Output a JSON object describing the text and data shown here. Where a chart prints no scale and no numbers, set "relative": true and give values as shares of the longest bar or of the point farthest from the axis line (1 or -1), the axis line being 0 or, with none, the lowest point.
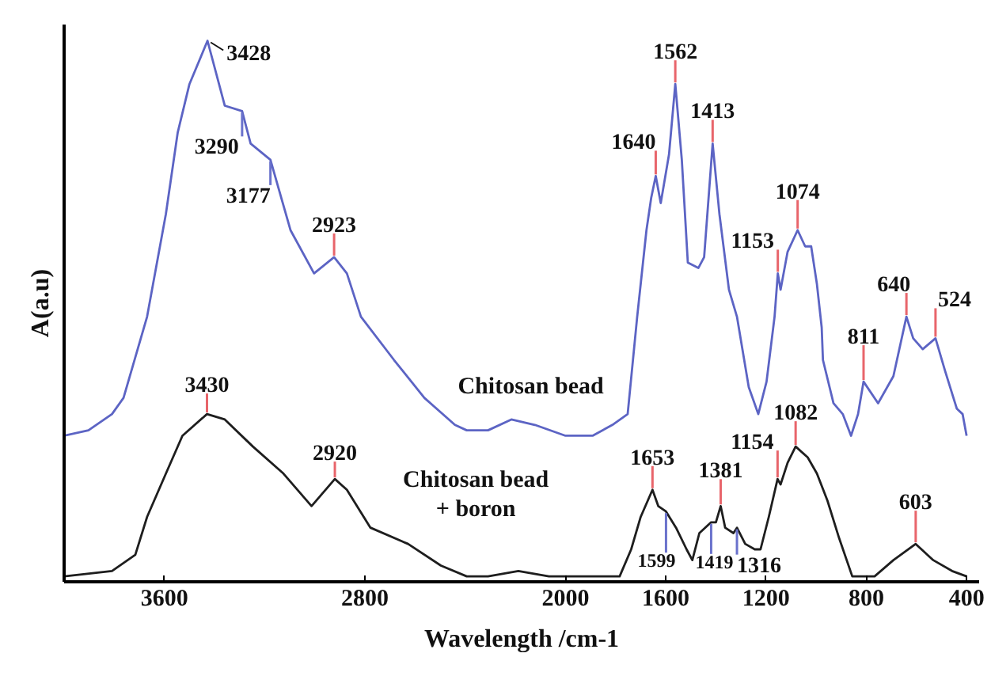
{
  "chart_data": {
    "type": "line",
    "xlabel": "Wavelength /cm-1",
    "ylabel": "A(a.u)",
    "relative": true,
    "xlim": [
      4000,
      350
    ],
    "xticks": [
      3600,
      2800,
      2000,
      1600,
      1200,
      800,
      400
    ],
    "series": [
      {
        "name": "Chitosan bead",
        "color": "#5c64c4",
        "x": [
          4000,
          3903,
          3809,
          3763,
          3669,
          3594,
          3547,
          3500,
          3428,
          3359,
          3290,
          3256,
          3177,
          3097,
          3003,
          2923,
          2872,
          2816,
          2684,
          2563,
          2441,
          2394,
          2309,
          2216,
          2122,
          2000,
          1892,
          1813,
          1752,
          1714,
          1677,
          1658,
          1640,
          1620,
          1587,
          1562,
          1536,
          1512,
          1470,
          1447,
          1413,
          1386,
          1348,
          1316,
          1269,
          1231,
          1198,
          1166,
          1153,
          1142,
          1114,
          1074,
          1044,
          1020,
          997,
          978,
          973,
          931,
          894,
          861,
          833,
          811,
          753,
          692,
          640,
          613,
          575,
          524,
          486,
          439,
          416,
          400
        ],
        "values": [
          0.27,
          0.28,
          0.31,
          0.34,
          0.49,
          0.68,
          0.83,
          0.92,
          1.0,
          0.88,
          0.87,
          0.81,
          0.78,
          0.65,
          0.57,
          0.6,
          0.57,
          0.49,
          0.41,
          0.34,
          0.29,
          0.28,
          0.28,
          0.3,
          0.29,
          0.27,
          0.27,
          0.29,
          0.31,
          0.49,
          0.65,
          0.71,
          0.75,
          0.7,
          0.79,
          0.92,
          0.78,
          0.59,
          0.58,
          0.6,
          0.81,
          0.68,
          0.54,
          0.49,
          0.36,
          0.31,
          0.37,
          0.49,
          0.57,
          0.54,
          0.61,
          0.65,
          0.62,
          0.62,
          0.55,
          0.47,
          0.41,
          0.33,
          0.31,
          0.27,
          0.31,
          0.37,
          0.33,
          0.38,
          0.49,
          0.45,
          0.43,
          0.45,
          0.39,
          0.32,
          0.31,
          0.27
        ]
      },
      {
        "name": "Chitosan bead + boron",
        "color": "#1e1e1e",
        "x": [
          4000,
          3809,
          3716,
          3669,
          3594,
          3528,
          3430,
          3359,
          3247,
          3125,
          3013,
          2920,
          2872,
          2778,
          2628,
          2497,
          2394,
          2309,
          2188,
          2066,
          1953,
          1813,
          1784,
          1738,
          1700,
          1653,
          1630,
          1599,
          1559,
          1517,
          1494,
          1466,
          1419,
          1400,
          1381,
          1363,
          1330,
          1316,
          1283,
          1245,
          1222,
          1189,
          1154,
          1142,
          1114,
          1082,
          1034,
          997,
          955,
          908,
          856,
          814,
          767,
          692,
          603,
          533,
          458,
          400
        ],
        "values": [
          0.01,
          0.02,
          0.05,
          0.12,
          0.2,
          0.27,
          0.31,
          0.3,
          0.25,
          0.2,
          0.14,
          0.19,
          0.17,
          0.1,
          0.07,
          0.03,
          0.01,
          0.01,
          0.02,
          0.01,
          0.01,
          0.01,
          0.01,
          0.06,
          0.12,
          0.17,
          0.14,
          0.13,
          0.1,
          0.06,
          0.04,
          0.09,
          0.11,
          0.11,
          0.14,
          0.1,
          0.09,
          0.1,
          0.07,
          0.06,
          0.06,
          0.12,
          0.19,
          0.18,
          0.22,
          0.25,
          0.23,
          0.2,
          0.15,
          0.08,
          0.01,
          0.01,
          0.01,
          0.04,
          0.07,
          0.04,
          0.02,
          0.01
        ]
      }
    ],
    "annotations": [
      {
        "text": "3428",
        "x": 3428,
        "y": 1.0
      },
      {
        "text": "3290",
        "x": 3290,
        "y": 0.87
      },
      {
        "text": "3177",
        "x": 3177,
        "y": 0.78
      },
      {
        "text": "2923",
        "x": 2923,
        "y": 0.6
      },
      {
        "text": "1640",
        "x": 1640,
        "y": 0.75
      },
      {
        "text": "1562",
        "x": 1562,
        "y": 0.92
      },
      {
        "text": "1413",
        "x": 1413,
        "y": 0.81
      },
      {
        "text": "1153",
        "x": 1153,
        "y": 0.57
      },
      {
        "text": "1074",
        "x": 1074,
        "y": 0.65
      },
      {
        "text": "811",
        "x": 811,
        "y": 0.37
      },
      {
        "text": "640",
        "x": 640,
        "y": 0.49
      },
      {
        "text": "524",
        "x": 524,
        "y": 0.45
      },
      {
        "text": "3430",
        "x": 3430,
        "y": 0.31
      },
      {
        "text": "2920",
        "x": 2920,
        "y": 0.19
      },
      {
        "text": "1653",
        "x": 1653,
        "y": 0.17
      },
      {
        "text": "1599",
        "x": 1599,
        "y": 0.13
      },
      {
        "text": "1419",
        "x": 1419,
        "y": 0.11
      },
      {
        "text": "1381",
        "x": 1381,
        "y": 0.14
      },
      {
        "text": "1316",
        "x": 1316,
        "y": 0.1
      },
      {
        "text": "1154",
        "x": 1154,
        "y": 0.19
      },
      {
        "text": "1082",
        "x": 1082,
        "y": 0.25
      },
      {
        "text": "603",
        "x": 603,
        "y": 0.07
      }
    ]
  }
}
